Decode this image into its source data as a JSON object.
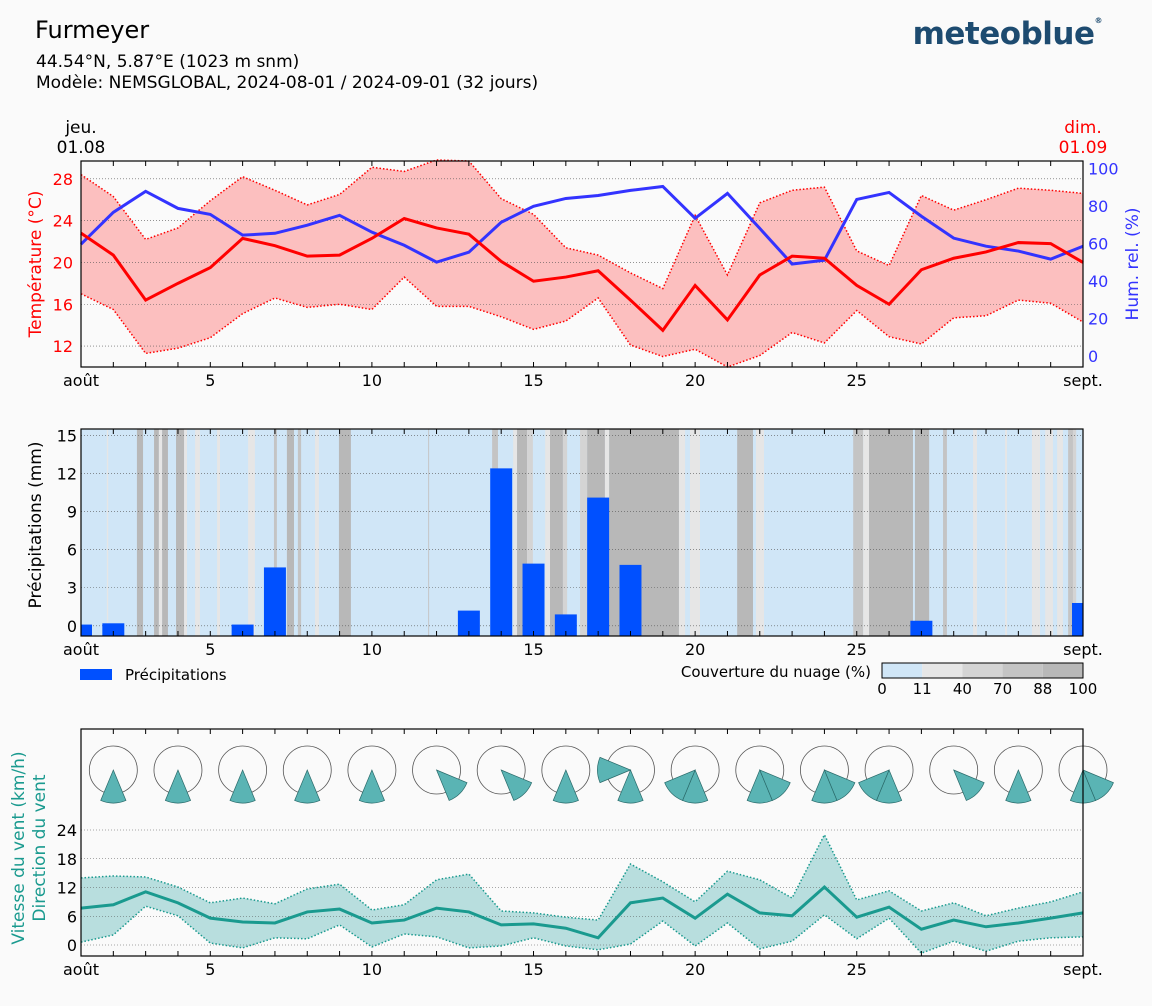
{
  "header": {
    "title": "Furmeyer",
    "coords": "44.54°N, 5.87°E (1023 m snm)",
    "model": "Modèle: NEMSGLOBAL, 2024-08-01 / 2024-09-01 (32 jours)",
    "logo": "meteoblue",
    "start_day": "jeu.",
    "start_date": "01.08",
    "end_day": "dim.",
    "end_date": "01.09"
  },
  "colors": {
    "temp": "#ff0000",
    "temp_band": "#fcbfbf",
    "humidity": "#3333ff",
    "precip": "#0050ff",
    "wind": "#1a9a8f",
    "wind_band": "#b8dede",
    "rose": "#5ab4b4",
    "logo": "#1d4b70"
  },
  "chart_data": [
    {
      "type": "line",
      "xlabels": [
        "août",
        "5",
        "10",
        "15",
        "20",
        "25",
        "sept."
      ],
      "xlabel_days": [
        1,
        5,
        10,
        15,
        20,
        25,
        32
      ],
      "ylabel": "Température (°C)",
      "ylabel2": "Hum. rel. (%)",
      "ylim": [
        10,
        29.7
      ],
      "ylim2": [
        -6,
        104
      ],
      "yticks": [
        12,
        16,
        20,
        24,
        28
      ],
      "yticks2": [
        0,
        20,
        40,
        60,
        80,
        100
      ],
      "grid": true,
      "days": [
        1,
        2,
        3,
        4,
        5,
        6,
        7,
        8,
        9,
        10,
        11,
        12,
        13,
        14,
        15,
        16,
        17,
        18,
        19,
        20,
        21,
        22,
        23,
        24,
        25,
        26,
        27,
        28,
        29,
        30,
        31,
        32
      ],
      "series": [
        {
          "key": "temp_mean",
          "values": [
            22.8,
            20.7,
            16.4,
            18.0,
            19.5,
            22.3,
            21.6,
            20.6,
            20.7,
            22.3,
            24.2,
            23.3,
            22.7,
            20.1,
            18.2,
            18.6,
            19.2,
            16.4,
            13.5,
            17.8,
            14.5,
            18.8,
            20.6,
            20.4,
            17.8,
            16.0,
            19.3,
            20.4,
            21.0,
            21.9,
            21.8,
            20.0
          ]
        },
        {
          "key": "temp_max",
          "values": [
            28.4,
            26.3,
            22.2,
            23.3,
            25.9,
            28.2,
            26.9,
            25.5,
            26.5,
            29.1,
            28.7,
            29.8,
            29.7,
            26.1,
            24.6,
            21.4,
            20.7,
            19.0,
            17.5,
            24.5,
            18.8,
            25.7,
            26.9,
            27.2,
            21.1,
            19.7,
            26.4,
            25.0,
            26.0,
            27.1,
            26.9,
            26.6
          ]
        },
        {
          "key": "temp_min",
          "values": [
            17.0,
            15.5,
            11.3,
            11.8,
            12.8,
            15.1,
            16.6,
            15.7,
            16.0,
            15.5,
            18.6,
            15.8,
            15.8,
            14.8,
            13.6,
            14.4,
            16.6,
            12.1,
            11.0,
            11.7,
            10.0,
            11.1,
            13.3,
            12.3,
            15.4,
            12.9,
            12.2,
            14.7,
            14.9,
            16.4,
            16.1,
            14.3
          ]
        },
        {
          "key": "humidity",
          "values": [
            59.6,
            76.6,
            87.8,
            78.7,
            75.5,
            64.4,
            65.4,
            69.7,
            75,
            66,
            59,
            50,
            55.3,
            71.3,
            79.8,
            84,
            85.6,
            88.3,
            90.4,
            73.4,
            86.7,
            68,
            49,
            51,
            83.5,
            87.2,
            74.5,
            62.8,
            58.5,
            55.9,
            51.6,
            58.5
          ]
        }
      ]
    },
    {
      "type": "bar",
      "ylabel": "Précipitations (mm)",
      "ylim": [
        -0.8,
        15.5
      ],
      "yticks": [
        0,
        3,
        6,
        9,
        12,
        15
      ],
      "grid": true,
      "legend": "Précipitations",
      "cloud_legend_title": "Couverture du nuage (%)",
      "cloud_legend_ticks": [
        "0",
        "11",
        "40",
        "70",
        "88",
        "100"
      ],
      "cloud_levels": [
        {
          "max": 11,
          "color": "#d0e6f7"
        },
        {
          "max": 40,
          "color": "#e6e6e6"
        },
        {
          "max": 70,
          "color": "#d4d4d4"
        },
        {
          "max": 88,
          "color": "#c4c4c4"
        },
        {
          "max": 100,
          "color": "#b8b8b8"
        }
      ],
      "bars": [
        [
          1,
          0.1
        ],
        [
          2,
          0.2
        ],
        [
          6,
          0.1
        ],
        [
          7,
          4.6
        ],
        [
          13,
          1.2
        ],
        [
          14,
          12.4
        ],
        [
          15,
          4.9
        ],
        [
          16,
          0.9
        ],
        [
          17,
          10.1
        ],
        [
          18,
          4.8
        ],
        [
          27,
          0.4
        ],
        [
          32,
          1.8
        ]
      ],
      "cloud_cover_default": 5,
      "cloud_cover": [
        [
          1.8,
          1.84,
          20
        ],
        [
          2.73,
          2.92,
          95
        ],
        [
          3.26,
          3.41,
          95
        ],
        [
          3.41,
          3.51,
          30
        ],
        [
          3.51,
          3.69,
          95
        ],
        [
          3.94,
          4.19,
          95
        ],
        [
          4.19,
          4.28,
          30
        ],
        [
          4.53,
          4.68,
          30
        ],
        [
          5.21,
          5.3,
          30
        ],
        [
          6.17,
          6.38,
          30
        ],
        [
          6.97,
          7.06,
          80
        ],
        [
          7.37,
          7.59,
          95
        ],
        [
          7.71,
          7.81,
          80
        ],
        [
          8.24,
          8.36,
          30
        ],
        [
          8.98,
          9.35,
          95
        ],
        [
          11.74,
          11.77,
          80
        ],
        [
          13.72,
          13.9,
          80
        ],
        [
          14.37,
          14.49,
          30
        ],
        [
          14.49,
          14.8,
          95
        ],
        [
          14.8,
          14.98,
          60
        ],
        [
          15.36,
          15.51,
          30
        ],
        [
          15.51,
          15.91,
          95
        ],
        [
          15.91,
          16.04,
          60
        ],
        [
          16.44,
          16.66,
          60
        ],
        [
          16.66,
          17.21,
          95
        ],
        [
          17.21,
          17.34,
          30
        ],
        [
          17.34,
          19.5,
          95
        ],
        [
          19.5,
          19.69,
          30
        ],
        [
          19.84,
          20.15,
          30
        ],
        [
          21.3,
          21.79,
          95
        ],
        [
          21.88,
          22.13,
          30
        ],
        [
          24.89,
          25.2,
          80
        ],
        [
          25.2,
          25.38,
          30
        ],
        [
          25.38,
          26.74,
          95
        ],
        [
          26.8,
          27.24,
          95
        ],
        [
          27.67,
          27.79,
          80
        ],
        [
          28.6,
          28.72,
          30
        ],
        [
          29.59,
          29.65,
          30
        ],
        [
          30.42,
          30.67,
          30
        ],
        [
          30.83,
          31.07,
          30
        ],
        [
          31.2,
          31.38,
          30
        ],
        [
          31.54,
          31.69,
          80
        ],
        [
          31.69,
          31.79,
          60
        ]
      ]
    },
    {
      "type": "area",
      "ylabel": "Vitesse du vent (km/h)",
      "ylabel2": "Direction du vent",
      "ylim": [
        -2.3,
        24
      ],
      "yticks": [
        0,
        6,
        12,
        18,
        24
      ],
      "grid": true,
      "series": [
        {
          "key": "wind_mean",
          "values": [
            7.7,
            8.4,
            11.1,
            8.8,
            5.6,
            4.8,
            4.6,
            6.9,
            7.5,
            4.6,
            5.2,
            7.7,
            6.9,
            4.2,
            4.4,
            3.5,
            1.5,
            8.8,
            9.8,
            5.6,
            10.6,
            6.7,
            6.1,
            12.1,
            5.8,
            7.9,
            3.3,
            5.2,
            3.8,
            4.6,
            5.6,
            6.7
          ]
        },
        {
          "key": "wind_max",
          "values": [
            14,
            14.4,
            14.2,
            12.1,
            8.8,
            9.8,
            8.6,
            11.7,
            12.7,
            7.3,
            8.4,
            13.6,
            14.8,
            7.1,
            6.7,
            5.8,
            5.2,
            16.9,
            13.2,
            9.0,
            15.4,
            13.6,
            9.8,
            23,
            9.4,
            11.3,
            7.1,
            8.8,
            6.1,
            7.7,
            9.0,
            11.1
          ]
        },
        {
          "key": "wind_min",
          "values": [
            0.6,
            2.1,
            8.1,
            6.1,
            0.4,
            -0.6,
            1.5,
            1.3,
            4.2,
            -0.4,
            2.3,
            1.7,
            -0.6,
            -0.2,
            1.5,
            -0.2,
            -1.0,
            0.2,
            5.0,
            -0.2,
            4.6,
            -0.8,
            0.8,
            6.3,
            1.3,
            5.6,
            -1.7,
            0.8,
            -1.3,
            0.8,
            1.5,
            1.7
          ]
        }
      ],
      "wind_roses": [
        {
          "day": 2,
          "dirs": [
            180
          ]
        },
        {
          "day": 4,
          "dirs": [
            180
          ]
        },
        {
          "day": 6,
          "dirs": [
            180
          ]
        },
        {
          "day": 8,
          "dirs": [
            180
          ]
        },
        {
          "day": 10,
          "dirs": [
            180
          ]
        },
        {
          "day": 12,
          "dirs": [
            135
          ]
        },
        {
          "day": 14,
          "dirs": [
            135
          ]
        },
        {
          "day": 16,
          "dirs": [
            180
          ]
        },
        {
          "day": 18,
          "dirs": [
            180,
            270
          ]
        },
        {
          "day": 20,
          "dirs": [
            180,
            225
          ]
        },
        {
          "day": 22,
          "dirs": [
            180,
            135
          ]
        },
        {
          "day": 24,
          "dirs": [
            180,
            135
          ]
        },
        {
          "day": 26,
          "dirs": [
            180,
            225
          ]
        },
        {
          "day": 28,
          "dirs": [
            135
          ]
        },
        {
          "day": 30,
          "dirs": [
            180
          ]
        },
        {
          "day": 32,
          "dirs": [
            180,
            135
          ]
        }
      ]
    }
  ]
}
